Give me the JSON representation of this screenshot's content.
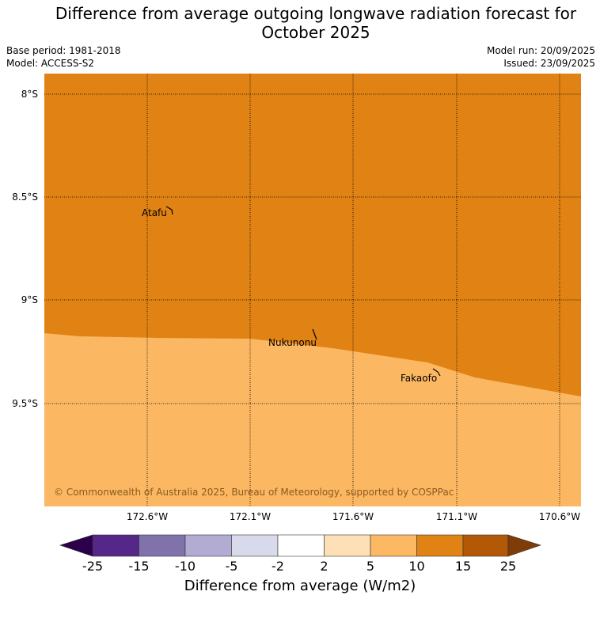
{
  "title_line1": "Difference from average outgoing longwave radiation forecast for",
  "title_line2": "October 2025",
  "base_period": "Base period: 1981-2018",
  "model": "Model: ACCESS-S2",
  "model_run": "Model run: 20/09/2025",
  "issued": "Issued: 23/09/2025",
  "copyright": "© Commonwealth of Australia 2025, Bureau of Meteorology, supported by COSPPac",
  "lat_labels": [
    "8°S",
    "8.5°S",
    "9°S",
    "9.5°S"
  ],
  "lon_labels": [
    "172.6°W",
    "172.1°W",
    "171.6°W",
    "171.1°W",
    "170.6°W"
  ],
  "places": [
    "Atafu",
    "Nukunonu",
    "Fakaofo"
  ],
  "colorbar": {
    "ticks": [
      "-25",
      "-15",
      "-10",
      "-5",
      "-2",
      "2",
      "5",
      "10",
      "15",
      "25"
    ],
    "label": "Difference from average (W/m2)",
    "colors": [
      "#2d004b",
      "#542788",
      "#8073ac",
      "#b2abd2",
      "#d8daeb",
      "#ffffff",
      "#fee0b6",
      "#fdb863",
      "#e08214",
      "#b35806",
      "#7f3b08"
    ]
  },
  "fill_colors": {
    "upper": "#e08214",
    "lower": "#fbb761"
  }
}
